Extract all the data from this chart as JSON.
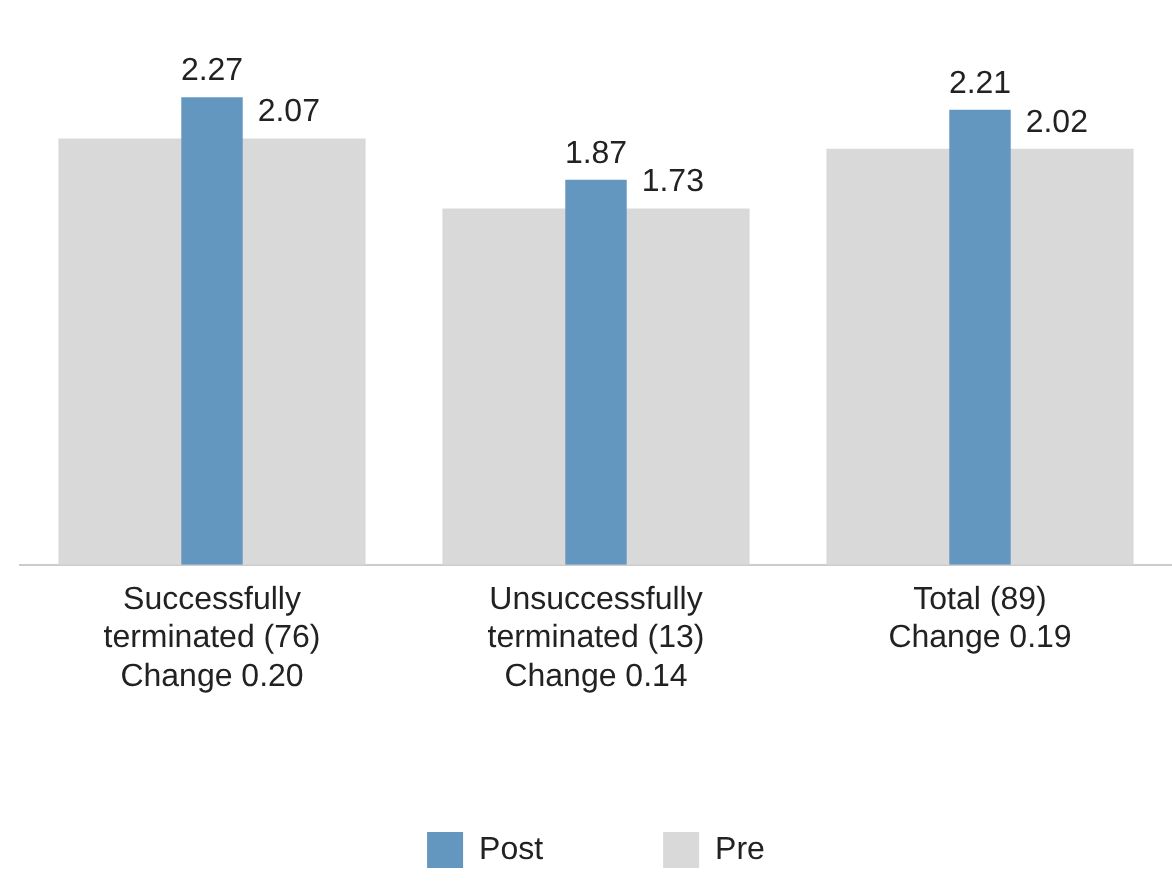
{
  "chart_data": {
    "type": "bar",
    "categories": [
      "Successfully\nterminated (76)\nChange 0.20",
      "Unsuccessfully\nterminated (13)\nChange 0.14",
      "Total (89)\nChange 0.19"
    ],
    "series": [
      {
        "name": "Post",
        "color": "#6497c0",
        "values": [
          2.27,
          1.87,
          2.21
        ]
      },
      {
        "name": "Pre",
        "color": "#d9d9d9",
        "values": [
          2.07,
          1.73,
          2.02
        ]
      }
    ],
    "data_labels": true,
    "legend": "bottom",
    "grid": false
  }
}
